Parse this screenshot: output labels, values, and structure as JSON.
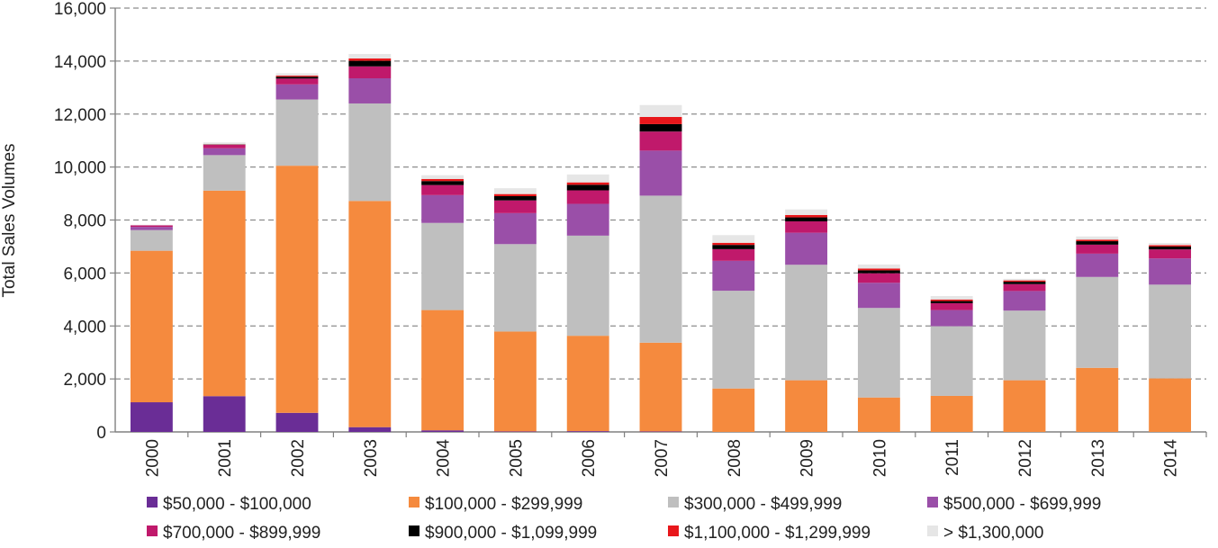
{
  "chart_data": {
    "type": "bar",
    "stacked": true,
    "title": "",
    "xlabel": "",
    "ylabel": "Total Sales Volumes",
    "ylim": [
      0,
      16000
    ],
    "yticks": [
      0,
      2000,
      4000,
      6000,
      8000,
      10000,
      12000,
      14000,
      16000
    ],
    "ytick_labels": [
      "0",
      "2,000",
      "4,000",
      "6,000",
      "8,000",
      "10,000",
      "12,000",
      "14,000",
      "16,000"
    ],
    "grid": "horizontal dashed",
    "legend_position": "bottom",
    "categories": [
      "2000",
      "2001",
      "2002",
      "2003",
      "2004",
      "2005",
      "2006",
      "2007",
      "2008",
      "2009",
      "2010",
      "2011",
      "2012",
      "2013",
      "2014"
    ],
    "series": [
      {
        "name": "$50,000 - $100,000",
        "color": "#6a2d96",
        "values": [
          1120,
          1350,
          720,
          180,
          60,
          20,
          30,
          20,
          0,
          0,
          0,
          0,
          0,
          0,
          0
        ]
      },
      {
        "name": "$100,000 - $299,999",
        "color": "#f58a3e",
        "values": [
          5720,
          7760,
          9330,
          8540,
          4540,
          3770,
          3600,
          3350,
          1640,
          1950,
          1300,
          1360,
          1950,
          2420,
          2020
        ]
      },
      {
        "name": "$300,000 - $499,999",
        "color": "#bfbfbf",
        "values": [
          780,
          1340,
          2500,
          3680,
          3290,
          3300,
          3780,
          5550,
          3690,
          4360,
          3380,
          2630,
          2630,
          3430,
          3540
        ]
      },
      {
        "name": "$500,000 - $699,999",
        "color": "#9a4fa8",
        "values": [
          120,
          260,
          570,
          950,
          1050,
          1170,
          1200,
          1700,
          1130,
          1210,
          950,
          610,
          740,
          880,
          990
        ]
      },
      {
        "name": "$700,000 - $899,999",
        "color": "#c0196b",
        "values": [
          60,
          130,
          220,
          450,
          380,
          480,
          510,
          720,
          440,
          430,
          360,
          260,
          260,
          340,
          340
        ]
      },
      {
        "name": "$900,000 - $1,099,999",
        "color": "#000000",
        "values": [
          0,
          10,
          70,
          210,
          150,
          160,
          210,
          280,
          160,
          150,
          110,
          80,
          90,
          130,
          110
        ]
      },
      {
        "name": "$1,100,000 - $1,299,999",
        "color": "#e8171b",
        "values": [
          0,
          10,
          40,
          90,
          80,
          80,
          90,
          270,
          80,
          90,
          70,
          60,
          50,
          60,
          50
        ]
      },
      {
        "name": "> $1,300,000",
        "color": "#e6e6e6",
        "values": [
          20,
          70,
          90,
          170,
          140,
          220,
          300,
          450,
          290,
          210,
          150,
          130,
          60,
          120,
          80
        ]
      }
    ]
  }
}
